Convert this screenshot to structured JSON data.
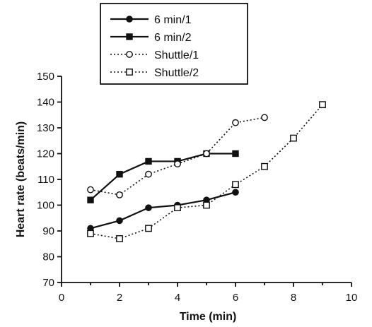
{
  "chart_data": {
    "type": "line",
    "title": "",
    "xlabel": "Time (min)",
    "ylabel": "Heart rate (beats/min)",
    "xlim": [
      0,
      10
    ],
    "ylim": [
      70,
      150
    ],
    "xticks": [
      "0",
      "2",
      "4",
      "6",
      "8",
      "10"
    ],
    "yticks": [
      "70",
      "80",
      "90",
      "100",
      "110",
      "120",
      "130",
      "140",
      "150"
    ],
    "grid": false,
    "legend_position": "top-left",
    "series": [
      {
        "name": "6 min/1",
        "line": "solid",
        "marker": "circle-filled",
        "x": [
          1,
          2,
          3,
          4,
          5,
          6
        ],
        "y": [
          91,
          94,
          99,
          100,
          102,
          105
        ]
      },
      {
        "name": "6 min/2",
        "line": "solid",
        "marker": "square-filled",
        "x": [
          1,
          2,
          3,
          4,
          5,
          6
        ],
        "y": [
          102,
          112,
          117,
          117,
          120,
          120
        ]
      },
      {
        "name": "Shuttle/1",
        "line": "dotted",
        "marker": "circle-open",
        "x": [
          1,
          2,
          3,
          4,
          5,
          6,
          7
        ],
        "y": [
          106,
          104,
          112,
          116,
          120,
          132,
          134
        ]
      },
      {
        "name": "Shuttle/2",
        "line": "dotted",
        "marker": "square-open",
        "x": [
          1,
          2,
          3,
          4,
          5,
          6,
          7,
          8,
          9
        ],
        "y": [
          89,
          87,
          91,
          99,
          100,
          108,
          115,
          126,
          139
        ]
      }
    ]
  }
}
